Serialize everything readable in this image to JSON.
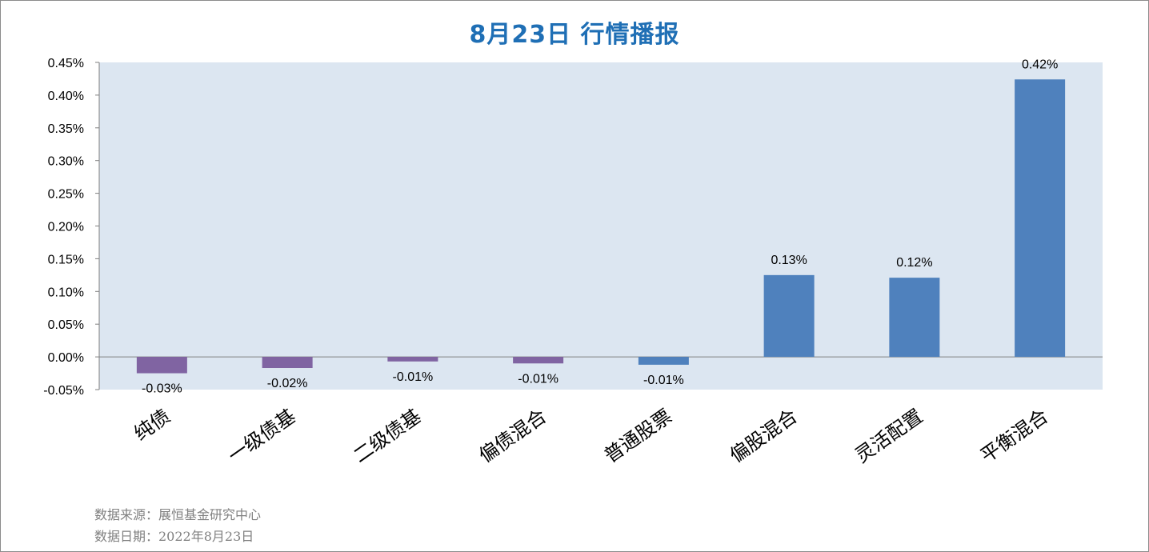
{
  "title": "8月23日  行情播报",
  "footer": {
    "source": "数据来源：展恒基金研究中心",
    "date": "数据日期：2022年8月23日"
  },
  "colors": {
    "plot_background": "#dce6f1",
    "positive_bar": "#4f81bd",
    "negative_bar": "#8064a2",
    "stock_negative_bar": "#4f81bd",
    "title": "#1f6fb5"
  },
  "chart_data": {
    "type": "bar",
    "title": "8月23日  行情播报",
    "categories": [
      "纯债",
      "一级债基",
      "二级债基",
      "偏债混合",
      "普通股票",
      "偏股混合",
      "灵活配置",
      "平衡混合"
    ],
    "values": [
      -0.025,
      -0.017,
      -0.007,
      -0.01,
      -0.012,
      0.125,
      0.121,
      0.424
    ],
    "data_labels": [
      "-0.03%",
      "-0.02%",
      "-0.01%",
      "-0.01%",
      "-0.01%",
      "0.13%",
      "0.12%",
      "0.42%"
    ],
    "bar_colors": [
      "#8064a2",
      "#8064a2",
      "#8064a2",
      "#8064a2",
      "#4f81bd",
      "#4f81bd",
      "#4f81bd",
      "#4f81bd"
    ],
    "yticks": [
      "0.45%",
      "0.40%",
      "0.35%",
      "0.30%",
      "0.25%",
      "0.20%",
      "0.15%",
      "0.10%",
      "0.05%",
      "0.00%",
      "-0.05%"
    ],
    "ylim": [
      -0.05,
      0.45
    ],
    "xlabel": "",
    "ylabel": "",
    "grid": false,
    "legend": "none"
  }
}
